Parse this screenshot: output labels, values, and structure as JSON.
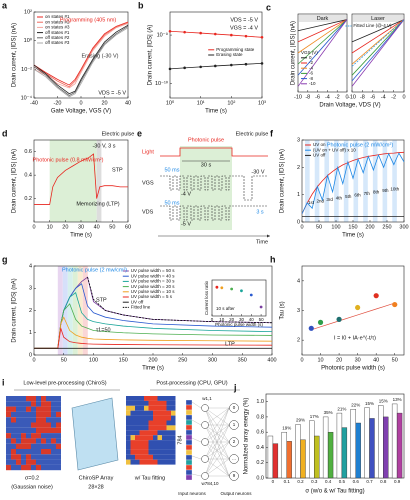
{
  "chart_data": [
    {
      "type": "line",
      "panel": "a",
      "ylabel": "Drain current, |IDS| (nA)",
      "xlabel": "Gate Voltage, VGS (V)",
      "x": [
        -40,
        -30,
        -20,
        -10,
        -5,
        0,
        10,
        20,
        30,
        40
      ],
      "xlim": [
        -40,
        40
      ],
      "xticks": [
        -40,
        -20,
        0,
        20,
        40
      ],
      "ylog": true,
      "ylim": [
        0.0001,
        100
      ],
      "yticks": [
        {
          "value": 0.0001,
          "label": "10⁻⁴"
        },
        {
          "value": 0.01,
          "label": "10⁻²"
        },
        {
          "value": 1,
          "label": "10⁰"
        },
        {
          "value": 100,
          "label": "10²"
        }
      ],
      "legend": "upper left",
      "series": [
        {
          "name": "on states #1",
          "color": "#e8261f",
          "values": [
            0.02,
            0.006,
            0.002,
            0.0008,
            0.002,
            0.01,
            0.3,
            3,
            10,
            20
          ]
        },
        {
          "name": "on states #2",
          "color": "#f06a5e",
          "values": [
            0.015,
            0.005,
            0.0015,
            0.0006,
            0.0015,
            0.008,
            0.25,
            2.5,
            9,
            18
          ]
        },
        {
          "name": "on states #3",
          "color": "#f5a39b",
          "values": [
            0.01,
            0.004,
            0.001,
            0.0005,
            0.001,
            0.006,
            0.2,
            2,
            8,
            16
          ]
        },
        {
          "name": "off states #1",
          "color": "#222222",
          "values": [
            0.02,
            0.005,
            0.0008,
            0.0002,
            0.0003,
            0.002,
            0.05,
            0.8,
            4,
            12
          ]
        },
        {
          "name": "off states #2",
          "color": "#666666",
          "values": [
            0.015,
            0.004,
            0.0006,
            0.00015,
            0.00025,
            0.0015,
            0.04,
            0.6,
            3,
            10
          ]
        },
        {
          "name": "off states #3",
          "color": "#aaaaaa",
          "values": [
            0.01,
            0.003,
            0.0005,
            0.00012,
            0.0002,
            0.001,
            0.03,
            0.5,
            2.5,
            8
          ]
        }
      ],
      "notes": [
        "Programming (405 nm)",
        "Erasing (-30 V)",
        "VDS = -5 V"
      ]
    },
    {
      "type": "line",
      "panel": "b",
      "ylabel": "Drain current, |IDS| (A)",
      "xlabel": "Time (s)",
      "x": [
        1,
        3,
        10,
        30,
        100,
        300,
        1000
      ],
      "xlog": true,
      "xlim": [
        1,
        1000
      ],
      "xticks": [
        {
          "value": 1,
          "label": "10⁰"
        },
        {
          "value": 10,
          "label": "10¹"
        },
        {
          "value": 100,
          "label": "10²"
        },
        {
          "value": 1000,
          "label": "10³"
        }
      ],
      "ylog": true,
      "ylim": [
        5e-11,
        3e-09
      ],
      "yticks": [
        {
          "value": 1e-10,
          "label": "10⁻¹⁰"
        },
        {
          "value": 1e-09,
          "label": "10⁻⁹"
        }
      ],
      "legend": "center right",
      "markers": true,
      "series": [
        {
          "name": "Programming state",
          "color": "#e8261f",
          "values": [
            1.2e-09,
            1.15e-09,
            1.1e-09,
            1.05e-09,
            1e-09,
            9.5e-10,
            9e-10
          ]
        },
        {
          "name": "Erasing state",
          "color": "#222222",
          "values": [
            2e-10,
            2.1e-10,
            2.2e-10,
            2.3e-10,
            2.4e-10,
            2.5e-10,
            2.6e-10
          ]
        }
      ],
      "notes": [
        "VDS = -5 V",
        "VGS = -4 V"
      ]
    },
    {
      "type": "line",
      "panel": "c",
      "title": "Dark",
      "ylabel": "Drain current, |IDS| (nA)",
      "xlabel": "Drain Voltage, VDS (V)",
      "x": [
        -10,
        -5,
        0
      ],
      "xlim": [
        -10,
        0
      ],
      "xticks": [
        -10,
        -8,
        -6,
        -4,
        -2,
        0
      ],
      "ylim": [
        -6.5,
        0.5
      ],
      "legend": "lower left",
      "legend_title": "VGS (V)",
      "series": [
        {
          "name": "0",
          "color": "#222222",
          "values": [
            -1,
            -0.5,
            0
          ]
        },
        {
          "name": "-2",
          "color": "#e8261f",
          "values": [
            -2,
            -1,
            0
          ]
        },
        {
          "name": "-4",
          "color": "#f08a20",
          "values": [
            -3,
            -1.5,
            0
          ]
        },
        {
          "name": "-6",
          "color": "#3a9a3a",
          "values": [
            -4,
            -2,
            0
          ]
        },
        {
          "name": "-8",
          "color": "#2a5ad0",
          "values": [
            -5,
            -2.5,
            0
          ]
        },
        {
          "name": "-10",
          "color": "#8a3ab0",
          "values": [
            -6,
            -3,
            0
          ]
        }
      ]
    },
    {
      "type": "line",
      "title": "Laser",
      "x": [
        -10,
        -5,
        0
      ],
      "xlim": [
        -10,
        0
      ],
      "xticks": [
        -10,
        -8,
        -6,
        -4,
        -2,
        0
      ],
      "ylim": [
        -6.5,
        0.5
      ],
      "legend": "upper right",
      "series": [
        {
          "color": "#222222",
          "values": [
            -2,
            -1,
            0
          ]
        },
        {
          "color": "#e8261f",
          "values": [
            -3,
            -1.5,
            0
          ]
        },
        {
          "color": "#f08a20",
          "values": [
            -4,
            -2,
            0
          ]
        },
        {
          "color": "#3a9a3a",
          "values": [
            -5,
            -2.5,
            0
          ]
        },
        {
          "color": "#2a5ad0",
          "values": [
            -5.5,
            -2.8,
            0
          ]
        },
        {
          "color": "#8a3ab0",
          "values": [
            -6,
            -3,
            0
          ]
        },
        {
          "name": "Fitted Line (@-4 V)",
          "color": "#3aa0e0",
          "dash": true,
          "values": [
            -4.2,
            -2.1,
            0
          ]
        }
      ]
    },
    {
      "type": "line",
      "panel": "d",
      "ylabel": "Drain current, |IDS| (nA)",
      "xlabel": "Time (s)",
      "x": [
        0,
        5,
        10,
        12,
        15,
        20,
        25,
        30,
        35,
        38,
        40,
        42,
        45,
        50,
        55,
        60
      ],
      "xlim": [
        0,
        60
      ],
      "xticks": [
        0,
        10,
        20,
        30,
        40,
        50,
        60
      ],
      "ylim": [
        0,
        0.7
      ],
      "yticks": [
        0.2,
        0.4,
        0.6
      ],
      "series": [
        {
          "color": "#e8261f",
          "values": [
            0.15,
            0.15,
            0.15,
            0.3,
            0.38,
            0.44,
            0.48,
            0.52,
            0.55,
            0.58,
            0.2,
            0.3,
            0.31,
            0.31,
            0.3,
            0.3
          ]
        }
      ],
      "notes": [
        "Photonic pulse (0.8 mW/cm²)",
        "Electric pulse",
        "-30 V, 3 s",
        "STP",
        "Memorizing (LTP)"
      ]
    },
    {
      "type": "line",
      "panel": "f",
      "ylabel": "Drain current, |IDS| (nA)",
      "xlabel": "Time (s)",
      "x": [
        0,
        15,
        30,
        45,
        60,
        75,
        90,
        105,
        120,
        135,
        150,
        165,
        180,
        195,
        210,
        225,
        240,
        255,
        270,
        285,
        300
      ],
      "xlim": [
        0,
        300
      ],
      "xticks": [
        0,
        50,
        100,
        150,
        200,
        250,
        300
      ],
      "ylim": [
        0,
        3
      ],
      "yticks": [
        0,
        1,
        2,
        3
      ],
      "legend": "upper left",
      "series": [
        {
          "name": "UV on",
          "color": "#e8261f",
          "values": [
            0.3,
            0.69,
            1.02,
            1.29,
            1.51,
            1.7,
            1.85,
            1.98,
            2.09,
            2.17,
            2.25,
            2.31,
            2.36,
            2.4,
            2.43,
            2.46,
            2.49,
            2.51,
            2.52,
            2.54,
            2.55
          ]
        },
        {
          "name": "(UV on + UV off) x 10",
          "color": "#1e88e5",
          "values": [
            0.3,
            0.7,
            0.5,
            1.3,
            0.8,
            1.7,
            1.1,
            2.0,
            1.4,
            2.2,
            1.6,
            2.3,
            1.8,
            2.4,
            1.9,
            2.45,
            2.0,
            2.5,
            2.1,
            2.52,
            2.2
          ]
        },
        {
          "name": "UV off",
          "color": "#222222",
          "values": [
            0.2,
            0.2,
            0.2,
            0.2,
            0.2,
            0.2,
            0.2,
            0.2,
            0.2,
            0.2,
            0.2,
            0.2,
            0.2,
            0.2,
            0.2,
            0.2,
            0.2,
            0.2,
            0.2,
            0.2,
            0.2
          ]
        }
      ],
      "notes": [
        "Photonic pulse (2 mW/cm²)",
        "1st",
        "2nd",
        "3rd",
        "4th",
        "5th",
        "6th",
        "7th",
        "8th",
        "9th",
        "10th"
      ]
    },
    {
      "type": "line",
      "panel": "g",
      "ylabel": "Drain current, |IDS| (nA)",
      "xlabel": "Time (s)",
      "x": [
        0,
        40,
        45,
        50,
        60,
        70,
        80,
        90,
        100,
        120,
        150,
        200,
        300,
        400
      ],
      "xlim": [
        0,
        400
      ],
      "xticks": [
        0,
        50,
        100,
        150,
        200,
        250,
        300,
        350,
        400
      ],
      "ylim": [
        0,
        4
      ],
      "yticks": [
        0,
        1,
        2,
        3,
        4
      ],
      "legend": "upper center",
      "series": [
        {
          "name": "UV pulse width = 50 s",
          "color": "#7b3fa0",
          "values": [
            0.3,
            0.3,
            1.4,
            2.0,
            2.6,
            3.0,
            3.3,
            3.5,
            2.4,
            2.0,
            1.8,
            1.6,
            1.5,
            1.45
          ]
        },
        {
          "name": "UV pulse width = 40 s",
          "color": "#2a5ad0",
          "values": [
            0.3,
            0.3,
            1.4,
            2.0,
            2.6,
            3.0,
            3.2,
            2.2,
            1.9,
            1.7,
            1.55,
            1.4,
            1.3,
            1.25
          ]
        },
        {
          "name": "UV pulse width = 30 s",
          "color": "#1aa59a",
          "values": [
            0.3,
            0.3,
            1.4,
            2.0,
            2.6,
            2.8,
            1.9,
            1.6,
            1.5,
            1.4,
            1.3,
            1.2,
            1.1,
            1.05
          ]
        },
        {
          "name": "UV pulse width = 20 s",
          "color": "#4caf50",
          "values": [
            0.3,
            0.3,
            1.4,
            2.0,
            2.3,
            1.6,
            1.3,
            1.2,
            1.1,
            1.05,
            1.0,
            0.95,
            0.9,
            0.88
          ]
        },
        {
          "name": "UV pulse width = 10 s",
          "color": "#f0a020",
          "values": [
            0.3,
            0.3,
            1.4,
            1.7,
            1.1,
            0.9,
            0.8,
            0.75,
            0.72,
            0.7,
            0.68,
            0.66,
            0.64,
            0.62
          ]
        },
        {
          "name": "UV pulse width = 5 s",
          "color": "#e8261f",
          "values": [
            0.3,
            0.3,
            1.2,
            0.8,
            0.6,
            0.55,
            0.52,
            0.5,
            0.49,
            0.48,
            0.47,
            0.46,
            0.45,
            0.44
          ]
        },
        {
          "name": "UV off",
          "color": "#222222",
          "values": [
            0.3,
            0.3,
            0.3,
            0.3,
            0.3,
            0.3,
            0.3,
            0.3,
            0.3,
            0.3,
            0.3,
            0.3,
            0.3,
            0.3
          ]
        },
        {
          "name": "Fitted line",
          "color": "#000000",
          "dash": true,
          "values": [
            null,
            null,
            null,
            null,
            null,
            null,
            null,
            3.5,
            2.5,
            2.0,
            1.8,
            1.6,
            1.5,
            1.45
          ]
        }
      ],
      "notes": [
        "Photonic pulse (2 mw/cm²)",
        "STP",
        "LTP",
        "τ1=50"
      ]
    },
    {
      "type": "scatter",
      "ylabel": "Current loss ratio",
      "xlabel": "Photonic pulse width (s)",
      "x": [
        5,
        10,
        20,
        30,
        40,
        50
      ],
      "xlim": [
        0,
        55
      ],
      "xticks": [
        0,
        10,
        20,
        30,
        40,
        50
      ],
      "ylim": [
        0,
        0.6
      ],
      "values": [
        0.48,
        0.47,
        0.45,
        0.42,
        0.35,
        0.15
      ],
      "colors": [
        "#e8261f",
        "#f0a020",
        "#4caf50",
        "#1aa59a",
        "#2a5ad0",
        "#7b3fa0"
      ],
      "notes": [
        "10 s after"
      ]
    },
    {
      "type": "scatter",
      "panel": "h",
      "ylabel": "Tau (s)",
      "xlabel": "Photonic pulse width (s)",
      "x": [
        5,
        10,
        20,
        30,
        40,
        50
      ],
      "xlim": [
        0,
        55
      ],
      "xticks": [
        0,
        10,
        20,
        30,
        40,
        50
      ],
      "ylim": [
        1.5,
        4.5
      ],
      "yticks": [
        2,
        3,
        4
      ],
      "values": [
        2.4,
        2.6,
        2.7,
        3.1,
        3.5,
        3.2
      ],
      "fit_values": [
        2.35,
        2.45,
        2.65,
        2.85,
        3.05,
        3.25
      ],
      "colors": [
        "#3050c0",
        "#2e9e4a",
        "#1f6f6f",
        "#e0b020",
        "#e03020",
        "#f08020"
      ],
      "notes": [
        "I = I0 + IA·e^(-t/τ)"
      ]
    },
    {
      "type": "bar",
      "panel": "j",
      "ylabel": "Normalized array energy (%)",
      "xlabel": "σ (w/o & w/ Tau fitting)",
      "categories": [
        "0",
        "0.1",
        "0.2",
        "0.3",
        "0.4",
        "0.5",
        "0.6",
        "0.7",
        "0.8",
        "0.9"
      ],
      "ylim": [
        0,
        1.1
      ],
      "yticks": [
        {
          "value": 0,
          "label": "0.0"
        },
        0.2,
        0.4,
        0.6,
        0.8,
        {
          "value": 1,
          "label": "1.0"
        }
      ],
      "series": [
        {
          "color": "#ffffff",
          "values": [
            0.55,
            0.6,
            0.7,
            0.75,
            0.8,
            0.85,
            0.9,
            0.92,
            0.95,
            0.97
          ]
        },
        {
          "colors": [
            "#e03030",
            "#f07030",
            "#f0b020",
            "#c0c020",
            "#50b040",
            "#20a0a0",
            "#2080d0",
            "#4050c0",
            "#8040b0",
            "#b040a0"
          ],
          "values": [
            0.45,
            0.48,
            0.5,
            0.55,
            0.6,
            0.66,
            0.72,
            0.78,
            0.8,
            0.85
          ]
        }
      ],
      "gain_labels": [
        null,
        "19%",
        "29%",
        "17%",
        "35%",
        "21%",
        "22%",
        "15%",
        "15%",
        "13%"
      ]
    }
  ],
  "diagram_e": {
    "panel": "e",
    "light": "Light",
    "photonic_pulse": "Photonic pulse",
    "electric_pulse": "Electric pulse",
    "t30": "30 s",
    "t50a": "50 ms",
    "v30": "-30 V",
    "v4": "-4 V",
    "vgs": "VGS",
    "vds": "VDS",
    "t3": "3 s",
    "t50b": "50 ms",
    "v5": "-5 V",
    "time": "Time"
  },
  "diagram_i": {
    "panel": "i",
    "pre": "Low-level pre-processing (ChiroS)",
    "post": "Post-processing (CPU, GPU)",
    "sigma": "σ=0.2",
    "noise": "(Gaussian noise)",
    "array": "ChiroSP Array",
    "size": "28×28",
    "tau": "w/ Tau fitting",
    "n784": "784",
    "w11": "w1,1",
    "w784": "w784,10",
    "input": "Input neurons",
    "output": "Output neurons",
    "outs": [
      "0",
      "1",
      "2",
      "...",
      "9"
    ]
  }
}
